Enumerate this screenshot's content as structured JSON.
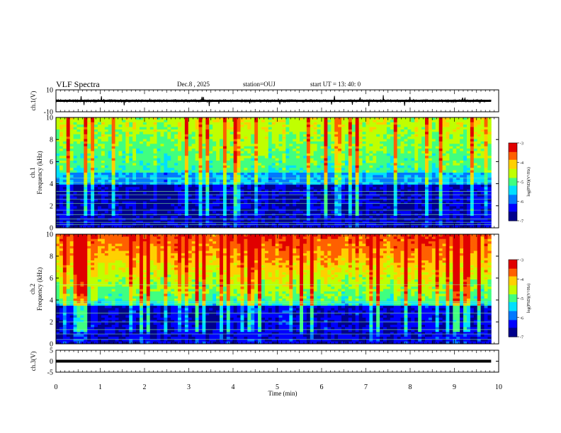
{
  "header": {
    "title": "VLF Spectra",
    "date": "Dec.8 , 2025",
    "station": "station=OUJ",
    "start": "start UT = 13: 40: 0"
  },
  "chart_data": [
    {
      "type": "line",
      "ylabel": "ch.1(V)",
      "ylim": [
        -10,
        10
      ],
      "yticks": [
        "10",
        "-10"
      ],
      "baseline": 0,
      "description_color": "#000000"
    },
    {
      "type": "heatmap",
      "ylabel": "ch.1 Frequency (kHz)",
      "ylim": [
        0,
        10
      ],
      "yticks": [
        "0",
        "2",
        "4",
        "6",
        "8",
        "10"
      ],
      "colorbar": {
        "label": "log(PSD)(V²/Hz)",
        "ticks": [
          "-3",
          "-4",
          "-5",
          "-6",
          "-7"
        ],
        "range": [
          -7,
          -3
        ]
      }
    },
    {
      "type": "heatmap",
      "ylabel": "ch.2 Frequency (kHz)",
      "ylim": [
        0,
        10
      ],
      "yticks": [
        "0",
        "2",
        "4",
        "6",
        "8",
        "10"
      ],
      "colorbar": {
        "label": "log(PSD)(V²/Hz)",
        "ticks": [
          "-3",
          "-4",
          "-5",
          "-6",
          "-7"
        ],
        "range": [
          -7,
          -3
        ]
      }
    },
    {
      "type": "line",
      "ylabel": "ch.3(V)",
      "ylim": [
        -5,
        5
      ],
      "yticks": [
        "5",
        "0",
        "-5"
      ],
      "baseline": 0
    }
  ],
  "xaxis": {
    "label": "Time (min)",
    "range": [
      0,
      10
    ],
    "ticks": [
      "0",
      "1",
      "2",
      "3",
      "4",
      "5",
      "6",
      "7",
      "8",
      "9",
      "10"
    ],
    "data_end": 9.83
  },
  "colors": {
    "colormap": [
      "#00008c",
      "#0000ff",
      "#0078ff",
      "#00e0ff",
      "#40ff80",
      "#c0ff00",
      "#ffd000",
      "#ff6000",
      "#e00000"
    ]
  }
}
